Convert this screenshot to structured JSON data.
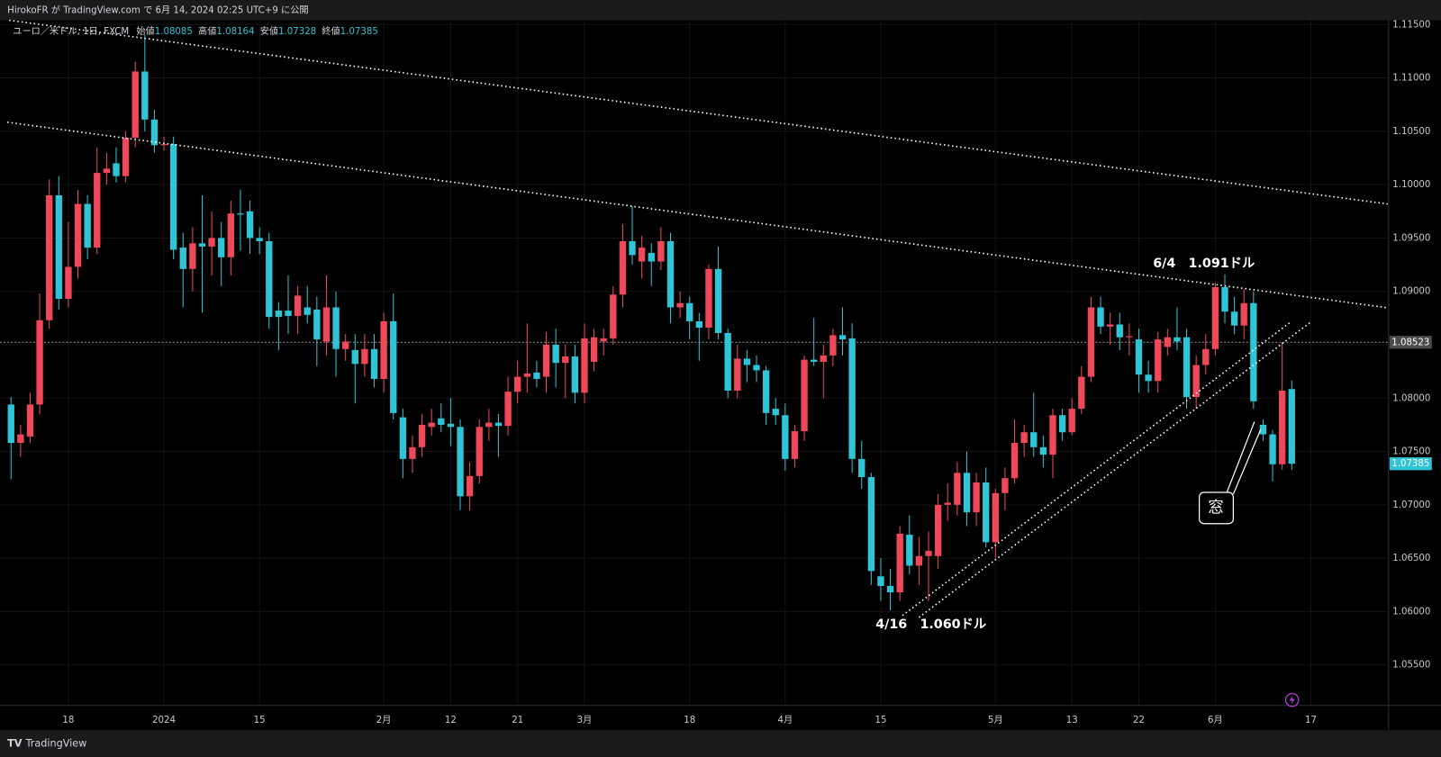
{
  "header": {
    "published": "HirokoFR が TradingView.com で 6月 14, 2024 02:25 UTC+9 に公開"
  },
  "footer": {
    "brand": "TradingView"
  },
  "chart_data": {
    "type": "candlestick",
    "legend": {
      "symbol": "ユーロ／米ドル, 1日, FXCM",
      "labels": [
        "始値",
        "高値",
        "安値",
        "終値"
      ]
    },
    "annotations": [
      "6/4　1.091ドル",
      "4/16　1.060ドル",
      "窓"
    ],
    "up_color": "#f0485b",
    "down_color": "#2fc4d6",
    "grid": true,
    "ylim": [
      1.0512,
      1.1154
    ],
    "yticks": [
      {
        "value": 1.055,
        "label": "1.05500"
      },
      {
        "value": 1.06,
        "label": "1.06000"
      },
      {
        "value": 1.065,
        "label": "1.06500"
      },
      {
        "value": 1.07,
        "label": "1.07000"
      },
      {
        "value": 1.075,
        "label": "1.07500"
      },
      {
        "value": 1.08,
        "label": "1.08000"
      },
      {
        "value": 1.085,
        "label": "1.08500"
      },
      {
        "value": 1.09,
        "label": "1.09000"
      },
      {
        "value": 1.095,
        "label": "1.09500"
      },
      {
        "value": 1.1,
        "label": "1.10000"
      },
      {
        "value": 1.105,
        "label": "1.10500"
      },
      {
        "value": 1.11,
        "label": "1.11000"
      },
      {
        "value": 1.115,
        "label": "1.11500"
      }
    ],
    "price_line": {
      "value": 1.08523,
      "label": "1.08523"
    },
    "categories": [
      null,
      null,
      null,
      null,
      null,
      null,
      "18",
      null,
      null,
      null,
      null,
      null,
      null,
      null,
      null,
      null,
      "2024",
      null,
      null,
      null,
      null,
      null,
      null,
      null,
      null,
      null,
      "15",
      null,
      null,
      null,
      null,
      null,
      null,
      null,
      null,
      null,
      null,
      null,
      null,
      "2月",
      null,
      null,
      null,
      null,
      null,
      null,
      "12",
      null,
      null,
      null,
      null,
      null,
      null,
      "21",
      null,
      null,
      null,
      null,
      null,
      null,
      "3月",
      null,
      null,
      null,
      null,
      null,
      null,
      null,
      null,
      null,
      null,
      "18",
      null,
      null,
      null,
      null,
      null,
      null,
      null,
      null,
      null,
      "4月",
      null,
      null,
      null,
      null,
      null,
      null,
      null,
      null,
      null,
      "15",
      null,
      null,
      null,
      null,
      null,
      null,
      null,
      null,
      null,
      null,
      null,
      "5月",
      null,
      null,
      null,
      null,
      null,
      null,
      null,
      "13",
      null,
      null,
      null,
      null,
      null,
      null,
      "22",
      null,
      null,
      null,
      null,
      null,
      null,
      null,
      "6月",
      null,
      null,
      null,
      null,
      null,
      null,
      null,
      null,
      null,
      "17"
    ],
    "open": [
      1.0794,
      1.0758,
      1.0764,
      1.0794,
      1.0873,
      1.099,
      1.0893,
      1.0923,
      1.0982,
      1.0941,
      1.1011,
      1.102,
      1.1008,
      1.1044,
      1.1106,
      1.1061,
      1.1037,
      1.1038,
      1.0941,
      1.0921,
      1.0945,
      1.0942,
      1.095,
      1.0932,
      1.0973,
      1.0975,
      1.095,
      1.0947,
      1.0882,
      1.0882,
      1.0877,
      1.0885,
      1.0883,
      1.0853,
      1.0885,
      1.0846,
      1.0845,
      1.0832,
      1.0846,
      1.0818,
      1.0872,
      1.0782,
      1.0743,
      1.0754,
      1.0773,
      1.0781,
      1.0776,
      1.0773,
      1.0708,
      1.0727,
      1.0773,
      1.0777,
      1.0774,
      1.0806,
      1.082,
      1.0824,
      1.082,
      1.085,
      1.0833,
      1.0839,
      1.0805,
      1.0834,
      1.0853,
      1.0856,
      1.0897,
      1.0947,
      1.0928,
      1.0936,
      1.0928,
      1.0947,
      1.0885,
      1.0889,
      1.0872,
      1.0866,
      1.0921,
      1.0861,
      1.0807,
      1.0837,
      1.0831,
      1.0826,
      1.079,
      1.0784,
      1.0743,
      1.0769,
      1.0836,
      1.0834,
      1.084,
      1.0859,
      1.0856,
      1.0743,
      1.0726,
      1.0633,
      1.0624,
      1.0618,
      1.0672,
      1.0643,
      1.0652,
      1.0652,
      1.07,
      1.07,
      1.073,
      1.0693,
      1.0721,
      1.0665,
      1.0711,
      1.0725,
      1.0758,
      1.0768,
      1.0754,
      1.0747,
      1.0784,
      1.0768,
      1.079,
      1.082,
      1.0885,
      1.0867,
      1.0869,
      1.0857,
      1.0855,
      1.0822,
      1.0816,
      1.0848,
      1.0857,
      1.0857,
      1.0801,
      1.0831,
      1.0846,
      1.0904,
      1.0881,
      1.0868,
      1.0889,
      1.0775,
      1.0766,
      1.0738,
      1.08085,
      null,
      null
    ],
    "high": [
      1.0801,
      1.0775,
      1.0805,
      1.0898,
      1.1005,
      1.1008,
      1.0965,
      1.0995,
      1.099,
      1.1035,
      1.103,
      1.1035,
      1.105,
      1.1115,
      1.114,
      1.107,
      1.1045,
      1.1045,
      1.0955,
      1.096,
      1.099,
      1.0975,
      1.0965,
      1.0985,
      1.0995,
      1.0985,
      1.096,
      1.0955,
      1.089,
      1.0915,
      1.0905,
      1.0905,
      1.0895,
      1.0915,
      1.09,
      1.086,
      1.086,
      1.086,
      1.086,
      1.088,
      1.0898,
      1.079,
      1.0765,
      1.0785,
      1.079,
      1.0795,
      1.08,
      1.078,
      1.074,
      1.078,
      1.079,
      1.0785,
      1.082,
      1.0835,
      1.087,
      1.0835,
      1.0862,
      1.0865,
      1.085,
      1.085,
      1.087,
      1.0865,
      1.0865,
      1.0905,
      1.0963,
      1.098,
      1.0952,
      1.0945,
      1.096,
      1.0955,
      1.09,
      1.0895,
      1.088,
      1.0925,
      1.0942,
      1.0865,
      1.085,
      1.0845,
      1.084,
      1.083,
      1.08,
      1.0795,
      1.0775,
      1.084,
      1.0875,
      1.085,
      1.0865,
      1.0885,
      1.087,
      1.076,
      1.073,
      1.065,
      1.064,
      1.068,
      1.069,
      1.067,
      1.0675,
      1.071,
      1.072,
      1.074,
      1.075,
      1.073,
      1.0735,
      1.0715,
      1.0735,
      1.078,
      1.0775,
      1.0805,
      1.0765,
      1.079,
      1.079,
      1.08,
      1.083,
      1.0895,
      1.0895,
      1.088,
      1.088,
      1.087,
      1.0865,
      1.0835,
      1.0862,
      1.0865,
      1.0885,
      1.0865,
      1.084,
      1.086,
      1.0908,
      1.0916,
      1.0895,
      1.0902,
      1.09,
      1.078,
      1.077,
      1.0852,
      1.08164,
      null,
      null
    ],
    "low": [
      1.0724,
      1.0745,
      1.0758,
      1.0785,
      1.0865,
      1.0883,
      1.0885,
      1.0912,
      1.093,
      1.0935,
      1.1,
      1.1002,
      1.1002,
      1.1035,
      1.105,
      1.103,
      1.1032,
      1.093,
      1.0885,
      1.09,
      1.088,
      1.0915,
      1.0905,
      1.0915,
      1.0938,
      1.0935,
      1.0935,
      1.0865,
      1.0845,
      1.086,
      1.086,
      1.087,
      1.083,
      1.084,
      1.082,
      1.0835,
      1.0795,
      1.082,
      1.081,
      1.0805,
      1.078,
      1.0725,
      1.073,
      1.0745,
      1.0765,
      1.0768,
      1.0755,
      1.0695,
      1.0695,
      1.072,
      1.076,
      1.0745,
      1.0765,
      1.0795,
      1.0805,
      1.081,
      1.0805,
      1.081,
      1.08,
      1.0795,
      1.0795,
      1.0825,
      1.084,
      1.085,
      1.0885,
      1.0925,
      1.0912,
      1.0905,
      1.092,
      1.087,
      1.0875,
      1.0855,
      1.0835,
      1.0855,
      1.0855,
      1.08,
      1.08,
      1.0815,
      1.0815,
      1.0775,
      1.0775,
      1.0732,
      1.0735,
      1.076,
      1.083,
      1.08,
      1.083,
      1.084,
      1.073,
      1.0715,
      1.0625,
      1.061,
      1.0601,
      1.061,
      1.0635,
      1.0625,
      1.061,
      1.064,
      1.0685,
      1.069,
      1.068,
      1.068,
      1.066,
      1.065,
      1.0695,
      1.072,
      1.0745,
      1.0745,
      1.0735,
      1.0725,
      1.076,
      1.0765,
      1.0785,
      1.0815,
      1.086,
      1.085,
      1.0845,
      1.084,
      1.0805,
      1.0805,
      1.0805,
      1.084,
      1.0845,
      1.079,
      1.079,
      1.0822,
      1.084,
      1.087,
      1.086,
      1.0855,
      1.079,
      1.076,
      1.0722,
      1.0733,
      1.07328,
      null,
      null
    ],
    "close": [
      1.0758,
      1.0766,
      1.0794,
      1.0873,
      1.099,
      1.0893,
      1.0923,
      1.0982,
      1.0941,
      1.1011,
      1.1015,
      1.1008,
      1.1044,
      1.1106,
      1.1061,
      1.1037,
      1.1038,
      1.0939,
      1.0921,
      1.0945,
      1.0942,
      1.095,
      1.0932,
      1.0973,
      1.0972,
      1.095,
      1.0947,
      1.0876,
      1.0876,
      1.0877,
      1.0896,
      1.0878,
      1.0855,
      1.0885,
      1.0846,
      1.0853,
      1.0832,
      1.0846,
      1.0818,
      1.0872,
      1.0786,
      1.0743,
      1.0754,
      1.0775,
      1.0777,
      1.0775,
      1.0773,
      1.0708,
      1.0727,
      1.0773,
      1.0777,
      1.0774,
      1.0806,
      1.082,
      1.0823,
      1.0818,
      1.085,
      1.0833,
      1.0839,
      1.0805,
      1.0856,
      1.0857,
      1.0856,
      1.0897,
      1.0947,
      1.0934,
      1.0941,
      1.0928,
      1.0947,
      1.0885,
      1.0889,
      1.0872,
      1.0866,
      1.0921,
      1.0861,
      1.0807,
      1.0837,
      1.0831,
      1.0826,
      1.0786,
      1.0784,
      1.0743,
      1.0769,
      1.0836,
      1.0834,
      1.084,
      1.0859,
      1.0855,
      1.0743,
      1.0726,
      1.0638,
      1.0624,
      1.0618,
      1.0673,
      1.0643,
      1.0652,
      1.0657,
      1.07,
      1.0702,
      1.073,
      1.0693,
      1.0721,
      1.0665,
      1.0711,
      1.0725,
      1.0758,
      1.0768,
      1.0754,
      1.0747,
      1.0784,
      1.0768,
      1.079,
      1.082,
      1.0885,
      1.0867,
      1.0869,
      1.0857,
      1.0858,
      1.0822,
      1.0816,
      1.0855,
      1.0857,
      1.0853,
      1.0801,
      1.0831,
      1.0846,
      1.0904,
      1.0881,
      1.0868,
      1.0889,
      1.0797,
      1.0766,
      1.0738,
      1.0807,
      1.07385,
      null,
      null
    ]
  }
}
